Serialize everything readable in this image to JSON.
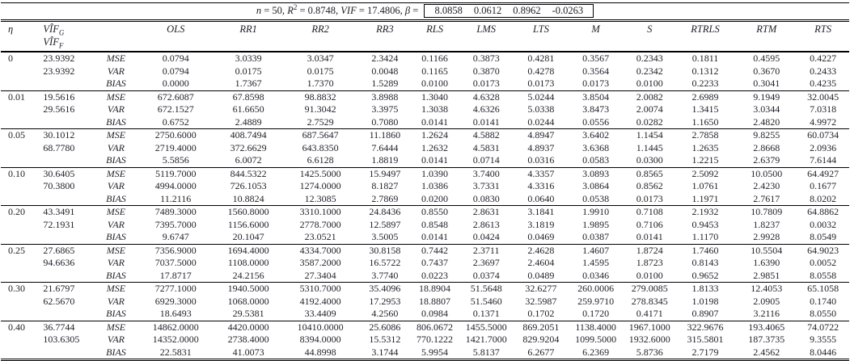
{
  "title": {
    "n_label": "n",
    "n_eq": " = 50, ",
    "r_label": "R",
    "r_sup": "2",
    "r_eq": " = 0.8748, ",
    "vif_label": "VIF",
    "vif_eq": " = 17.4806, ",
    "beta_label": "β",
    "beta_eq": " = ",
    "beta_values": [
      "8.0858",
      "0.0612",
      "0.8962",
      "-0.0263"
    ]
  },
  "header": {
    "eta": "η",
    "vif_base": "VÎF",
    "vif_g_sub": "G",
    "vif_f_sub": "F",
    "methods": [
      "OLS",
      "RR1",
      "RR2",
      "RR3",
      "RLS",
      "LMS",
      "LTS",
      "M",
      "S",
      "RTRLS",
      "RTM",
      "RTS"
    ]
  },
  "groups": [
    {
      "eta": "0",
      "vif_g": "23.9392",
      "vif_f": "23.9392",
      "rows": [
        {
          "stat": "MSE",
          "values": [
            "0.0794",
            "3.0339",
            "3.0347",
            "2.3424",
            "0.1166",
            "0.3873",
            "0.4281",
            "0.3567",
            "0.2343",
            "0.1811",
            "0.4595",
            "0.4227"
          ]
        },
        {
          "stat": "VAR",
          "values": [
            "0.0794",
            "0.0175",
            "0.0175",
            "0.0048",
            "0.1165",
            "0.3870",
            "0.4278",
            "0.3564",
            "0.2342",
            "0.1312",
            "0.3670",
            "0.2433"
          ]
        },
        {
          "stat": "BIAS",
          "values": [
            "0.0000",
            "1.7367",
            "1.7370",
            "1.5289",
            "0.0100",
            "0.0173",
            "0.0173",
            "0.0173",
            "0.0100",
            "0.2233",
            "0.3041",
            "0.4235"
          ]
        }
      ]
    },
    {
      "eta": "0.01",
      "vif_g": "19.5616",
      "vif_f": "29.5616",
      "rows": [
        {
          "stat": "MSE",
          "values": [
            "672.6087",
            "67.8598",
            "98.8832",
            "3.8988",
            "1.3040",
            "4.6328",
            "5.0244",
            "3.8504",
            "2.0082",
            "2.6989",
            "9.1949",
            "32.0045"
          ]
        },
        {
          "stat": "VAR",
          "values": [
            "672.1527",
            "61.6650",
            "91.3042",
            "3.3975",
            "1.3038",
            "4.6326",
            "5.0338",
            "3.8473",
            "2.0074",
            "1.3415",
            "3.0344",
            "7.0318"
          ]
        },
        {
          "stat": "BIAS",
          "values": [
            "0.6752",
            "2.4889",
            "2.7529",
            "0.7080",
            "0.0141",
            "0.0141",
            "0.0244",
            "0.0556",
            "0.0282",
            "1.1650",
            "2.4820",
            "4.9972"
          ]
        }
      ]
    },
    {
      "eta": "0.05",
      "vif_g": "30.1012",
      "vif_f": "68.7780",
      "rows": [
        {
          "stat": "MSE",
          "values": [
            "2750.6000",
            "408.7494",
            "687.5647",
            "11.1860",
            "1.2624",
            "4.5882",
            "4.8947",
            "3.6402",
            "1.1454",
            "2.7858",
            "9.8255",
            "60.0734"
          ]
        },
        {
          "stat": "VAR",
          "values": [
            "2719.4000",
            "372.6629",
            "643.8350",
            "7.6444",
            "1.2632",
            "4.5831",
            "4.8937",
            "3.6368",
            "1.1445",
            "1.2635",
            "2.8668",
            "2.0936"
          ]
        },
        {
          "stat": "BIAS",
          "values": [
            "5.5856",
            "6.0072",
            "6.6128",
            "1.8819",
            "0.0141",
            "0.0714",
            "0.0316",
            "0.0583",
            "0.0300",
            "1.2215",
            "2.6379",
            "7.6144"
          ]
        }
      ]
    },
    {
      "eta": "0.10",
      "vif_g": "30.6405",
      "vif_f": "70.3800",
      "rows": [
        {
          "stat": "MSE",
          "values": [
            "5119.7000",
            "844.5322",
            "1425.5000",
            "15.9497",
            "1.0390",
            "3.7400",
            "4.3357",
            "3.0893",
            "0.8565",
            "2.5092",
            "10.0500",
            "64.4927"
          ]
        },
        {
          "stat": "VAR",
          "values": [
            "4994.0000",
            "726.1053",
            "1274.0000",
            "8.1827",
            "1.0386",
            "3.7331",
            "4.3316",
            "3.0864",
            "0.8562",
            "1.0761",
            "2.4230",
            "0.1677"
          ]
        },
        {
          "stat": "BIAS",
          "values": [
            "11.2116",
            "10.8824",
            "12.3085",
            "2.7869",
            "0.0200",
            "0.0830",
            "0.0640",
            "0.0538",
            "0.0173",
            "1.1971",
            "2.7617",
            "8.0202"
          ]
        }
      ]
    },
    {
      "eta": "0.20",
      "vif_g": "43.3491",
      "vif_f": "72.1931",
      "rows": [
        {
          "stat": "MSE",
          "values": [
            "7489.3000",
            "1560.8000",
            "3310.1000",
            "24.8436",
            "0.8550",
            "2.8631",
            "3.1841",
            "1.9910",
            "0.7108",
            "2.1932",
            "10.7809",
            "64.8862"
          ]
        },
        {
          "stat": "VAR",
          "values": [
            "7395.7000",
            "1156.6000",
            "2778.7000",
            "12.5897",
            "0.8548",
            "2.8613",
            "3.1819",
            "1.9895",
            "0.7106",
            "0.9453",
            "1.8237",
            "0.0032"
          ]
        },
        {
          "stat": "BIAS",
          "values": [
            "9.6747",
            "20.1047",
            "23.0521",
            "3.5005",
            "0.0141",
            "0.0424",
            "0.0469",
            "0.0387",
            "0.0141",
            "1.1170",
            "2.9928",
            "8.0549"
          ]
        }
      ]
    },
    {
      "eta": "0.25",
      "vif_g": "27.6865",
      "vif_f": "94.6636",
      "rows": [
        {
          "stat": "MSE",
          "values": [
            "7356.9000",
            "1694.4000",
            "4334.7000",
            "30.8158",
            "0.7442",
            "2.3711",
            "2.4628",
            "1.4607",
            "1.8724",
            "1.7460",
            "10.5504",
            "64.9023"
          ]
        },
        {
          "stat": "VAR",
          "values": [
            "7037.5000",
            "1108.0000",
            "3587.2000",
            "16.5722",
            "0.7437",
            "2.3697",
            "2.4604",
            "1.4595",
            "1.8723",
            "0.8143",
            "1.6390",
            "0.0052"
          ]
        },
        {
          "stat": "BIAS",
          "values": [
            "17.8717",
            "24.2156",
            "27.3404",
            "3.7740",
            "0.0223",
            "0.0374",
            "0.0489",
            "0.0346",
            "0.0100",
            "0.9652",
            "2.9851",
            "8.0558"
          ]
        }
      ]
    },
    {
      "eta": "0.30",
      "vif_g": "21.6797",
      "vif_f": "62.5670",
      "rows": [
        {
          "stat": "MSE",
          "values": [
            "7277.1000",
            "1940.5000",
            "5310.7000",
            "35.4096",
            "18.8904",
            "51.5648",
            "32.6277",
            "260.0006",
            "279.0085",
            "1.8133",
            "12.4053",
            "65.1058"
          ]
        },
        {
          "stat": "VAR",
          "values": [
            "6929.3000",
            "1068.0000",
            "4192.4000",
            "17.2953",
            "18.8807",
            "51.5460",
            "32.5987",
            "259.9710",
            "278.8345",
            "1.0198",
            "2.0905",
            "0.1740"
          ]
        },
        {
          "stat": "BIAS",
          "values": [
            "18.6493",
            "29.5381",
            "33.4409",
            "4.2560",
            "0.0984",
            "0.1371",
            "0.1702",
            "0.1720",
            "0.4171",
            "0.8907",
            "3.2116",
            "8.0550"
          ]
        }
      ]
    },
    {
      "eta": "0.40",
      "vif_g": "36.7744",
      "vif_f": "103.6305",
      "rows": [
        {
          "stat": "MSE",
          "values": [
            "14862.0000",
            "4420.0000",
            "10410.0000",
            "25.6086",
            "806.0672",
            "1455.5000",
            "869.2051",
            "1138.4000",
            "1967.1000",
            "322.9676",
            "193.4065",
            "74.0722"
          ]
        },
        {
          "stat": "VAR",
          "values": [
            "14352.0000",
            "2738.4000",
            "8394.0000",
            "15.5312",
            "770.1222",
            "1421.7000",
            "829.9204",
            "1099.5000",
            "1932.6000",
            "315.5801",
            "187.3735",
            "9.3555"
          ]
        },
        {
          "stat": "BIAS",
          "values": [
            "22.5831",
            "41.0073",
            "44.8998",
            "3.1744",
            "5.9954",
            "5.8137",
            "6.2677",
            "6.2369",
            "5.8736",
            "2.7179",
            "2.4562",
            "8.0446"
          ]
        }
      ]
    }
  ]
}
